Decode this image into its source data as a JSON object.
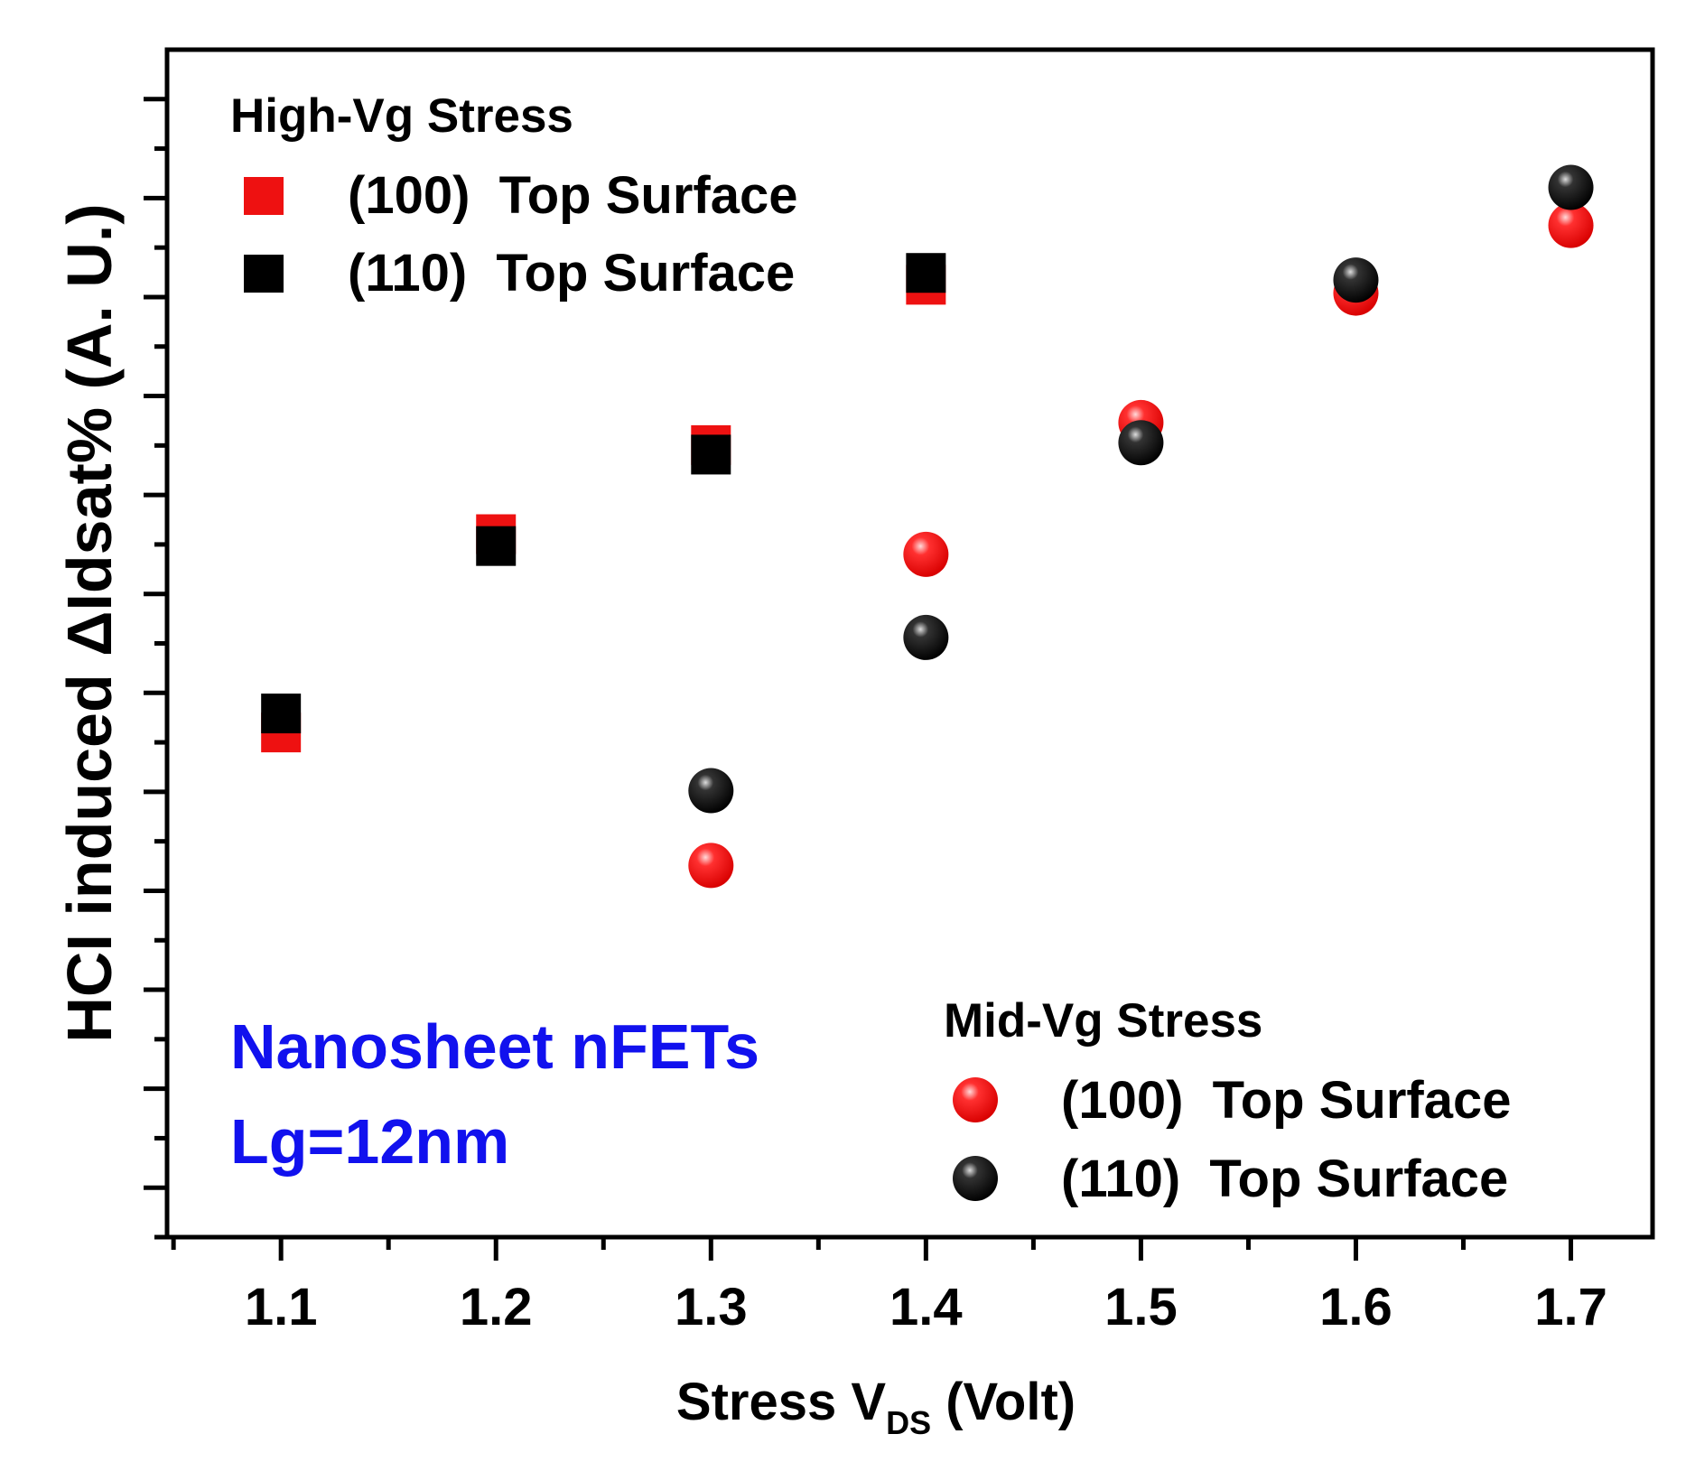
{
  "chart_data": {
    "type": "scatter",
    "title": "",
    "xlabel": "Stress V",
    "xlabel_sub": "DS",
    "xlabel_suffix": " (Volt)",
    "ylabel": "HCI induced ΔIdsat% (A. U.)",
    "xlim": [
      1.047,
      1.738
    ],
    "ylim": [
      0,
      100
    ],
    "x_ticks": [
      "1.1",
      "1.2",
      "1.3",
      "1.4",
      "1.5",
      "1.6",
      "1.7"
    ],
    "y_tick_labels": [],
    "legend_high": {
      "heading": "High-Vg Stress",
      "items": [
        "(100)  Top Surface",
        "(110)  Top Surface"
      ]
    },
    "legend_mid": {
      "heading": "Mid-Vg Stress",
      "items": [
        "(100)  Top Surface",
        "(110)  Top Surface"
      ]
    },
    "annotation": [
      "Nanosheet nFETs",
      "Lg=12nm"
    ],
    "colors": {
      "red": "#ee1111",
      "black": "#000000",
      "annotation": "#1111ee"
    },
    "series": [
      {
        "name": "High-Vg (100) Top Surface",
        "marker": "square",
        "color": "#ee1111",
        "x": [
          1.1,
          1.2,
          1.3,
          1.4
        ],
        "y": [
          42.5,
          59.2,
          66.7,
          80.2
        ]
      },
      {
        "name": "High-Vg (110) Top Surface",
        "marker": "square",
        "color": "#000000",
        "x": [
          1.1,
          1.2,
          1.3,
          1.4
        ],
        "y": [
          44.1,
          58.2,
          65.9,
          81.2
        ]
      },
      {
        "name": "Mid-Vg (100) Top Surface",
        "marker": "circle",
        "color": "#ee1111",
        "x": [
          1.3,
          1.4,
          1.5,
          1.6,
          1.7
        ],
        "y": [
          31.3,
          57.5,
          68.6,
          79.5,
          85.2
        ]
      },
      {
        "name": "Mid-Vg (110) Top Surface",
        "marker": "circle",
        "color": "#000000",
        "x": [
          1.3,
          1.4,
          1.5,
          1.6,
          1.7
        ],
        "y": [
          37.6,
          50.5,
          66.9,
          80.6,
          88.4
        ]
      }
    ]
  }
}
